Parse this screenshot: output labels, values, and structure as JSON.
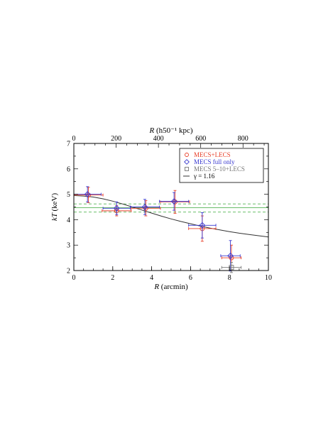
{
  "chart_data": {
    "type": "scatter",
    "xlabel": "R (arcmin)",
    "ylabel": "kT (keV)",
    "x2label": "R (h50⁻¹ kpc)",
    "xlim": [
      0,
      10
    ],
    "ylim": [
      2,
      7
    ],
    "x2lim": [
      0,
      920
    ],
    "x_ticks": [
      0,
      2,
      4,
      6,
      8,
      10
    ],
    "y_ticks": [
      2,
      3,
      4,
      5,
      6,
      7
    ],
    "x2_ticks": [
      0,
      200,
      400,
      600,
      800
    ],
    "series": [
      {
        "name": "MECS+LECS",
        "marker": "circle",
        "color": "#e8402a",
        "points": [
          {
            "x": 0.75,
            "y": 4.97,
            "xerr": 0.75,
            "yerr": 0.3
          },
          {
            "x": 2.2,
            "y": 4.35,
            "xerr": 0.75,
            "yerr": 0.2
          },
          {
            "x": 3.7,
            "y": 4.45,
            "xerr": 0.75,
            "yerr": 0.3
          },
          {
            "x": 5.2,
            "y": 4.7,
            "xerr": 0.75,
            "yerr": 0.45
          },
          {
            "x": 6.6,
            "y": 3.65,
            "xerr": 0.7,
            "yerr": 0.5
          },
          {
            "x": 8.1,
            "y": 2.5,
            "xerr": 0.5,
            "yerr": 0.5
          }
        ]
      },
      {
        "name": "MECS full only",
        "marker": "diamond",
        "color": "#3a3ad0",
        "points": [
          {
            "x": 0.7,
            "y": 5.0,
            "xerr": 0.7,
            "yerr": 0.3
          },
          {
            "x": 2.2,
            "y": 4.45,
            "xerr": 0.7,
            "yerr": 0.25
          },
          {
            "x": 3.65,
            "y": 4.5,
            "xerr": 0.75,
            "yerr": 0.3
          },
          {
            "x": 5.15,
            "y": 4.72,
            "xerr": 0.75,
            "yerr": 0.35
          },
          {
            "x": 6.6,
            "y": 3.78,
            "xerr": 0.7,
            "yerr": 0.5
          },
          {
            "x": 8.05,
            "y": 2.58,
            "xerr": 0.5,
            "yerr": 0.6
          }
        ]
      },
      {
        "name": "MECS 5–10+LECS",
        "marker": "square",
        "color": "#777777",
        "points": [
          {
            "x": 8.1,
            "y": 2.12,
            "xerr": 0.5,
            "yerr": 0.2
          }
        ]
      }
    ],
    "model_line": {
      "name": "γ = 1.16",
      "color": "#333333",
      "x": [
        0,
        0.5,
        1,
        1.5,
        2,
        2.5,
        3,
        3.5,
        4,
        4.5,
        5,
        5.5,
        6,
        6.5,
        7,
        7.5,
        8,
        8.5,
        9,
        9.5,
        10
      ],
      "y": [
        4.95,
        4.93,
        4.89,
        4.82,
        4.73,
        4.62,
        4.5,
        4.38,
        4.26,
        4.14,
        4.03,
        3.93,
        3.84,
        3.75,
        3.67,
        3.6,
        3.53,
        3.47,
        3.42,
        3.37,
        3.32
      ]
    },
    "mean_band": {
      "center": 4.47,
      "lower": 4.3,
      "upper": 4.62,
      "center_color": "#55b555",
      "band_color": "#55b555"
    },
    "legend_placement": "top-right"
  }
}
